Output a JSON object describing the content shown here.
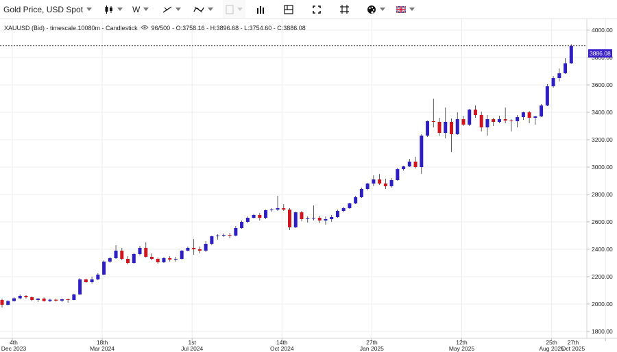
{
  "toolbar": {
    "instrument_label": "Gold Price, USD Spot",
    "timeframe_label": "W",
    "icons": [
      "candlestick-type-icon",
      "trendline-tool-icon",
      "drawing-tools-icon",
      "color-box-icon",
      "bar-indicators-icon",
      "layout-icon",
      "fullscreen-icon",
      "crop-icon",
      "theme-palette-icon",
      "language-flag-icon"
    ]
  },
  "legend": {
    "symbol_line": "XAUUSD (Bid) - timescale.10080m - Candlestick",
    "counter": "96/500",
    "ohlc": "- O:3758.16 - H:3896.68 - L:3754.60 - C:3886.08"
  },
  "current_price": "3886.08",
  "colors": {
    "up": "#2d1fc4",
    "down": "#d2141e",
    "price_tag": "#3a20c8"
  },
  "chart_data": {
    "type": "candlestick",
    "y_axis_ticks": [
      "1800.00",
      "2000.00",
      "2200.00",
      "2400.00",
      "2600.00",
      "2800.00",
      "3000.00",
      "3200.00",
      "3400.00",
      "3600.00",
      "3800.00",
      "4000.00"
    ],
    "ylim": [
      1750,
      4080
    ],
    "x_axis_labels": [
      {
        "day": "4th",
        "month": "Dec 2023"
      },
      {
        "day": "18th",
        "month": "Mar 2024"
      },
      {
        "day": "1st",
        "month": "Jul 2024"
      },
      {
        "day": "14th",
        "month": "Oct 2024"
      },
      {
        "day": "27th",
        "month": "Jan 2025"
      },
      {
        "day": "12th",
        "month": "May 2025"
      },
      {
        "day": "25th",
        "month": "Aug 2025"
      },
      {
        "day": "27th",
        "month": "Oct 2025"
      }
    ],
    "label_week_index": [
      0,
      15,
      30,
      45,
      60,
      75,
      90,
      99
    ],
    "grid": true,
    "current_price_line": 3886.08,
    "candles": [
      [
        2030,
        2040,
        1975,
        1995
      ],
      [
        1995,
        2028,
        1990,
        2022
      ],
      [
        2022,
        2050,
        2018,
        2042
      ],
      [
        2042,
        2070,
        2035,
        2060
      ],
      [
        2060,
        2065,
        2040,
        2050
      ],
      [
        2050,
        2055,
        2020,
        2030
      ],
      [
        2030,
        2045,
        2015,
        2040
      ],
      [
        2040,
        2048,
        2018,
        2022
      ],
      [
        2022,
        2038,
        2015,
        2032
      ],
      [
        2032,
        2040,
        2018,
        2025
      ],
      [
        2025,
        2040,
        2015,
        2035
      ],
      [
        2035,
        2040,
        2010,
        2030
      ],
      [
        2030,
        2075,
        2028,
        2070
      ],
      [
        2070,
        2190,
        2068,
        2180
      ],
      [
        2180,
        2185,
        2155,
        2160
      ],
      [
        2160,
        2200,
        2150,
        2180
      ],
      [
        2180,
        2225,
        2175,
        2215
      ],
      [
        2215,
        2318,
        2210,
        2310
      ],
      [
        2310,
        2345,
        2300,
        2335
      ],
      [
        2335,
        2430,
        2330,
        2390
      ],
      [
        2390,
        2410,
        2320,
        2330
      ],
      [
        2330,
        2350,
        2290,
        2300
      ],
      [
        2300,
        2375,
        2295,
        2365
      ],
      [
        2365,
        2425,
        2355,
        2410
      ],
      [
        2410,
        2450,
        2340,
        2345
      ],
      [
        2345,
        2370,
        2320,
        2330
      ],
      [
        2330,
        2340,
        2295,
        2305
      ],
      [
        2305,
        2345,
        2300,
        2335
      ],
      [
        2335,
        2350,
        2310,
        2325
      ],
      [
        2325,
        2345,
        2310,
        2330
      ],
      [
        2330,
        2395,
        2325,
        2390
      ],
      [
        2390,
        2420,
        2385,
        2410
      ],
      [
        2410,
        2475,
        2360,
        2400
      ],
      [
        2400,
        2420,
        2370,
        2390
      ],
      [
        2390,
        2460,
        2380,
        2440
      ],
      [
        2440,
        2500,
        2430,
        2495
      ],
      [
        2495,
        2510,
        2470,
        2500
      ],
      [
        2500,
        2515,
        2490,
        2505
      ],
      [
        2505,
        2520,
        2480,
        2500
      ],
      [
        2500,
        2570,
        2495,
        2555
      ],
      [
        2555,
        2610,
        2550,
        2600
      ],
      [
        2600,
        2640,
        2590,
        2630
      ],
      [
        2630,
        2660,
        2625,
        2650
      ],
      [
        2650,
        2665,
        2610,
        2630
      ],
      [
        2630,
        2690,
        2620,
        2685
      ],
      [
        2685,
        2700,
        2675,
        2690
      ],
      [
        2690,
        2790,
        2680,
        2700
      ],
      [
        2700,
        2730,
        2680,
        2690
      ],
      [
        2690,
        2700,
        2540,
        2560
      ],
      [
        2560,
        2675,
        2555,
        2670
      ],
      [
        2670,
        2680,
        2605,
        2620
      ],
      [
        2620,
        2640,
        2595,
        2625
      ],
      [
        2625,
        2720,
        2610,
        2630
      ],
      [
        2630,
        2645,
        2590,
        2610
      ],
      [
        2610,
        2640,
        2580,
        2620
      ],
      [
        2620,
        2650,
        2600,
        2635
      ],
      [
        2635,
        2690,
        2630,
        2680
      ],
      [
        2680,
        2710,
        2670,
        2700
      ],
      [
        2700,
        2740,
        2695,
        2735
      ],
      [
        2735,
        2790,
        2730,
        2780
      ],
      [
        2780,
        2850,
        2775,
        2840
      ],
      [
        2840,
        2885,
        2830,
        2880
      ],
      [
        2880,
        2940,
        2860,
        2910
      ],
      [
        2910,
        2950,
        2870,
        2880
      ],
      [
        2880,
        2915,
        2840,
        2860
      ],
      [
        2860,
        2920,
        2850,
        2905
      ],
      [
        2905,
        2995,
        2900,
        2985
      ],
      [
        2985,
        3010,
        2975,
        3005
      ],
      [
        3005,
        3060,
        3000,
        3040
      ],
      [
        3040,
        3075,
        2990,
        3000
      ],
      [
        3000,
        3240,
        2950,
        3230
      ],
      [
        3230,
        3340,
        3220,
        3335
      ],
      [
        3335,
        3500,
        3290,
        3330
      ],
      [
        3330,
        3360,
        3230,
        3250
      ],
      [
        3250,
        3435,
        3210,
        3330
      ],
      [
        3330,
        3355,
        3110,
        3240
      ],
      [
        3240,
        3400,
        3235,
        3350
      ],
      [
        3350,
        3375,
        3300,
        3310
      ],
      [
        3310,
        3425,
        3300,
        3420
      ],
      [
        3420,
        3450,
        3360,
        3380
      ],
      [
        3380,
        3405,
        3260,
        3290
      ],
      [
        3290,
        3380,
        3230,
        3350
      ],
      [
        3350,
        3360,
        3300,
        3330
      ],
      [
        3330,
        3375,
        3320,
        3350
      ],
      [
        3350,
        3435,
        3320,
        3340
      ],
      [
        3340,
        3350,
        3260,
        3335
      ],
      [
        3335,
        3380,
        3290,
        3365
      ],
      [
        3365,
        3405,
        3345,
        3400
      ],
      [
        3400,
        3410,
        3320,
        3360
      ],
      [
        3360,
        3375,
        3310,
        3370
      ],
      [
        3370,
        3460,
        3365,
        3450
      ],
      [
        3450,
        3605,
        3445,
        3590
      ],
      [
        3590,
        3665,
        3580,
        3650
      ],
      [
        3650,
        3720,
        3625,
        3685
      ],
      [
        3685,
        3795,
        3680,
        3758
      ],
      [
        3758,
        3897,
        3755,
        3886
      ]
    ]
  }
}
